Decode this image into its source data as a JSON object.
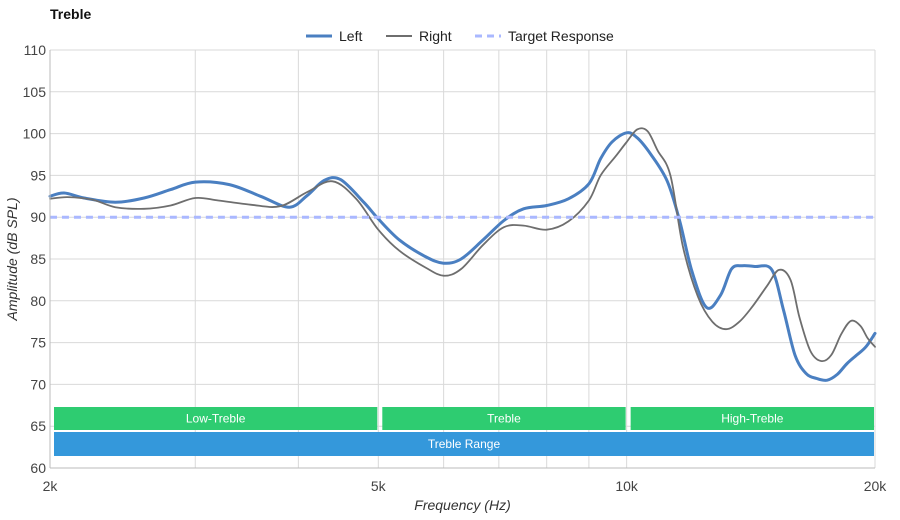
{
  "chart_data": {
    "type": "line",
    "title": "Treble",
    "xlabel": "Frequency (Hz)",
    "ylabel": "Amplitude (dB SPL)",
    "x_scale": "log",
    "xlim": [
      2000,
      20000
    ],
    "ylim": [
      60,
      110
    ],
    "x_ticks": [
      {
        "value": 2000,
        "label": "2k"
      },
      {
        "value": 5000,
        "label": "5k"
      },
      {
        "value": 10000,
        "label": "10k"
      },
      {
        "value": 20000,
        "label": "20k"
      }
    ],
    "y_ticks": [
      60,
      65,
      70,
      75,
      80,
      85,
      90,
      95,
      100,
      105,
      110
    ],
    "x_gridlines": [
      2000,
      3000,
      4000,
      5000,
      6000,
      7000,
      8000,
      9000,
      10000,
      20000
    ],
    "grid": true,
    "legend_position": "top-center",
    "series": [
      {
        "name": "Left",
        "color": "#4a7fc1",
        "style": "solid-thick",
        "x": [
          2000,
          2080,
          2200,
          2400,
          2600,
          2800,
          3000,
          3300,
          3600,
          3900,
          4100,
          4300,
          4500,
          4800,
          5000,
          5300,
          5700,
          6000,
          6300,
          6700,
          7100,
          7500,
          8000,
          8500,
          9000,
          9300,
          9600,
          10000,
          10300,
          10700,
          11200,
          11600,
          12000,
          12500,
          13000,
          13400,
          13800,
          14300,
          15000,
          15500,
          16000,
          16500,
          17000,
          17500,
          18000,
          18500,
          19000,
          19500,
          20000
        ],
        "y": [
          92.5,
          92.9,
          92.3,
          91.8,
          92.3,
          93.3,
          94.2,
          93.9,
          92.5,
          91.2,
          92.6,
          94.4,
          94.5,
          91.8,
          89.8,
          87.3,
          85.3,
          84.5,
          85.0,
          87.3,
          89.6,
          91.0,
          91.4,
          92.2,
          94.0,
          97.0,
          99.0,
          100.1,
          99.5,
          97.5,
          94.3,
          89.5,
          83.5,
          79.2,
          80.7,
          83.8,
          84.2,
          84.1,
          83.7,
          78.8,
          73.5,
          71.3,
          70.7,
          70.5,
          71.2,
          72.5,
          73.5,
          74.5,
          76.1
        ]
      },
      {
        "name": "Right",
        "color": "#6e6e6e",
        "style": "solid-thin",
        "x": [
          2000,
          2100,
          2250,
          2400,
          2600,
          2800,
          3000,
          3200,
          3500,
          3800,
          4100,
          4400,
          4700,
          5000,
          5300,
          5700,
          6000,
          6300,
          6700,
          7100,
          7500,
          8000,
          8500,
          9000,
          9300,
          9700,
          10000,
          10300,
          10600,
          10900,
          11300,
          11700,
          12200,
          12700,
          13200,
          13700,
          14200,
          14800,
          15300,
          15800,
          16200,
          16700,
          17200,
          17700,
          18200,
          18700,
          19200,
          19600,
          20000
        ],
        "y": [
          92.2,
          92.4,
          92.1,
          91.2,
          91.0,
          91.4,
          92.3,
          92.0,
          91.5,
          91.3,
          93.0,
          94.3,
          92.2,
          88.5,
          86.0,
          84.0,
          83.0,
          83.8,
          86.7,
          88.8,
          89.0,
          88.5,
          89.5,
          92.0,
          95.0,
          97.3,
          99.0,
          100.5,
          100.3,
          98.0,
          95.0,
          86.5,
          80.5,
          77.5,
          76.6,
          77.5,
          79.3,
          81.8,
          83.7,
          82.5,
          78.0,
          74.0,
          72.8,
          73.5,
          76.0,
          77.6,
          77.0,
          75.5,
          74.5
        ]
      },
      {
        "name": "Target Response",
        "color": "#aab8ff",
        "style": "dashed",
        "x": [
          2000,
          20000
        ],
        "y": [
          90,
          90
        ]
      }
    ],
    "bands": [
      {
        "label": "Low-Treble",
        "from": 2000,
        "to": 5000,
        "row": 1,
        "color": "#2ecc71"
      },
      {
        "label": "Treble",
        "from": 5000,
        "to": 10000,
        "row": 1,
        "color": "#2ecc71"
      },
      {
        "label": "High-Treble",
        "from": 10000,
        "to": 20000,
        "row": 1,
        "color": "#2ecc71"
      },
      {
        "label": "Treble Range",
        "from": 2000,
        "to": 20000,
        "row": 2,
        "color": "#3498db"
      }
    ]
  }
}
